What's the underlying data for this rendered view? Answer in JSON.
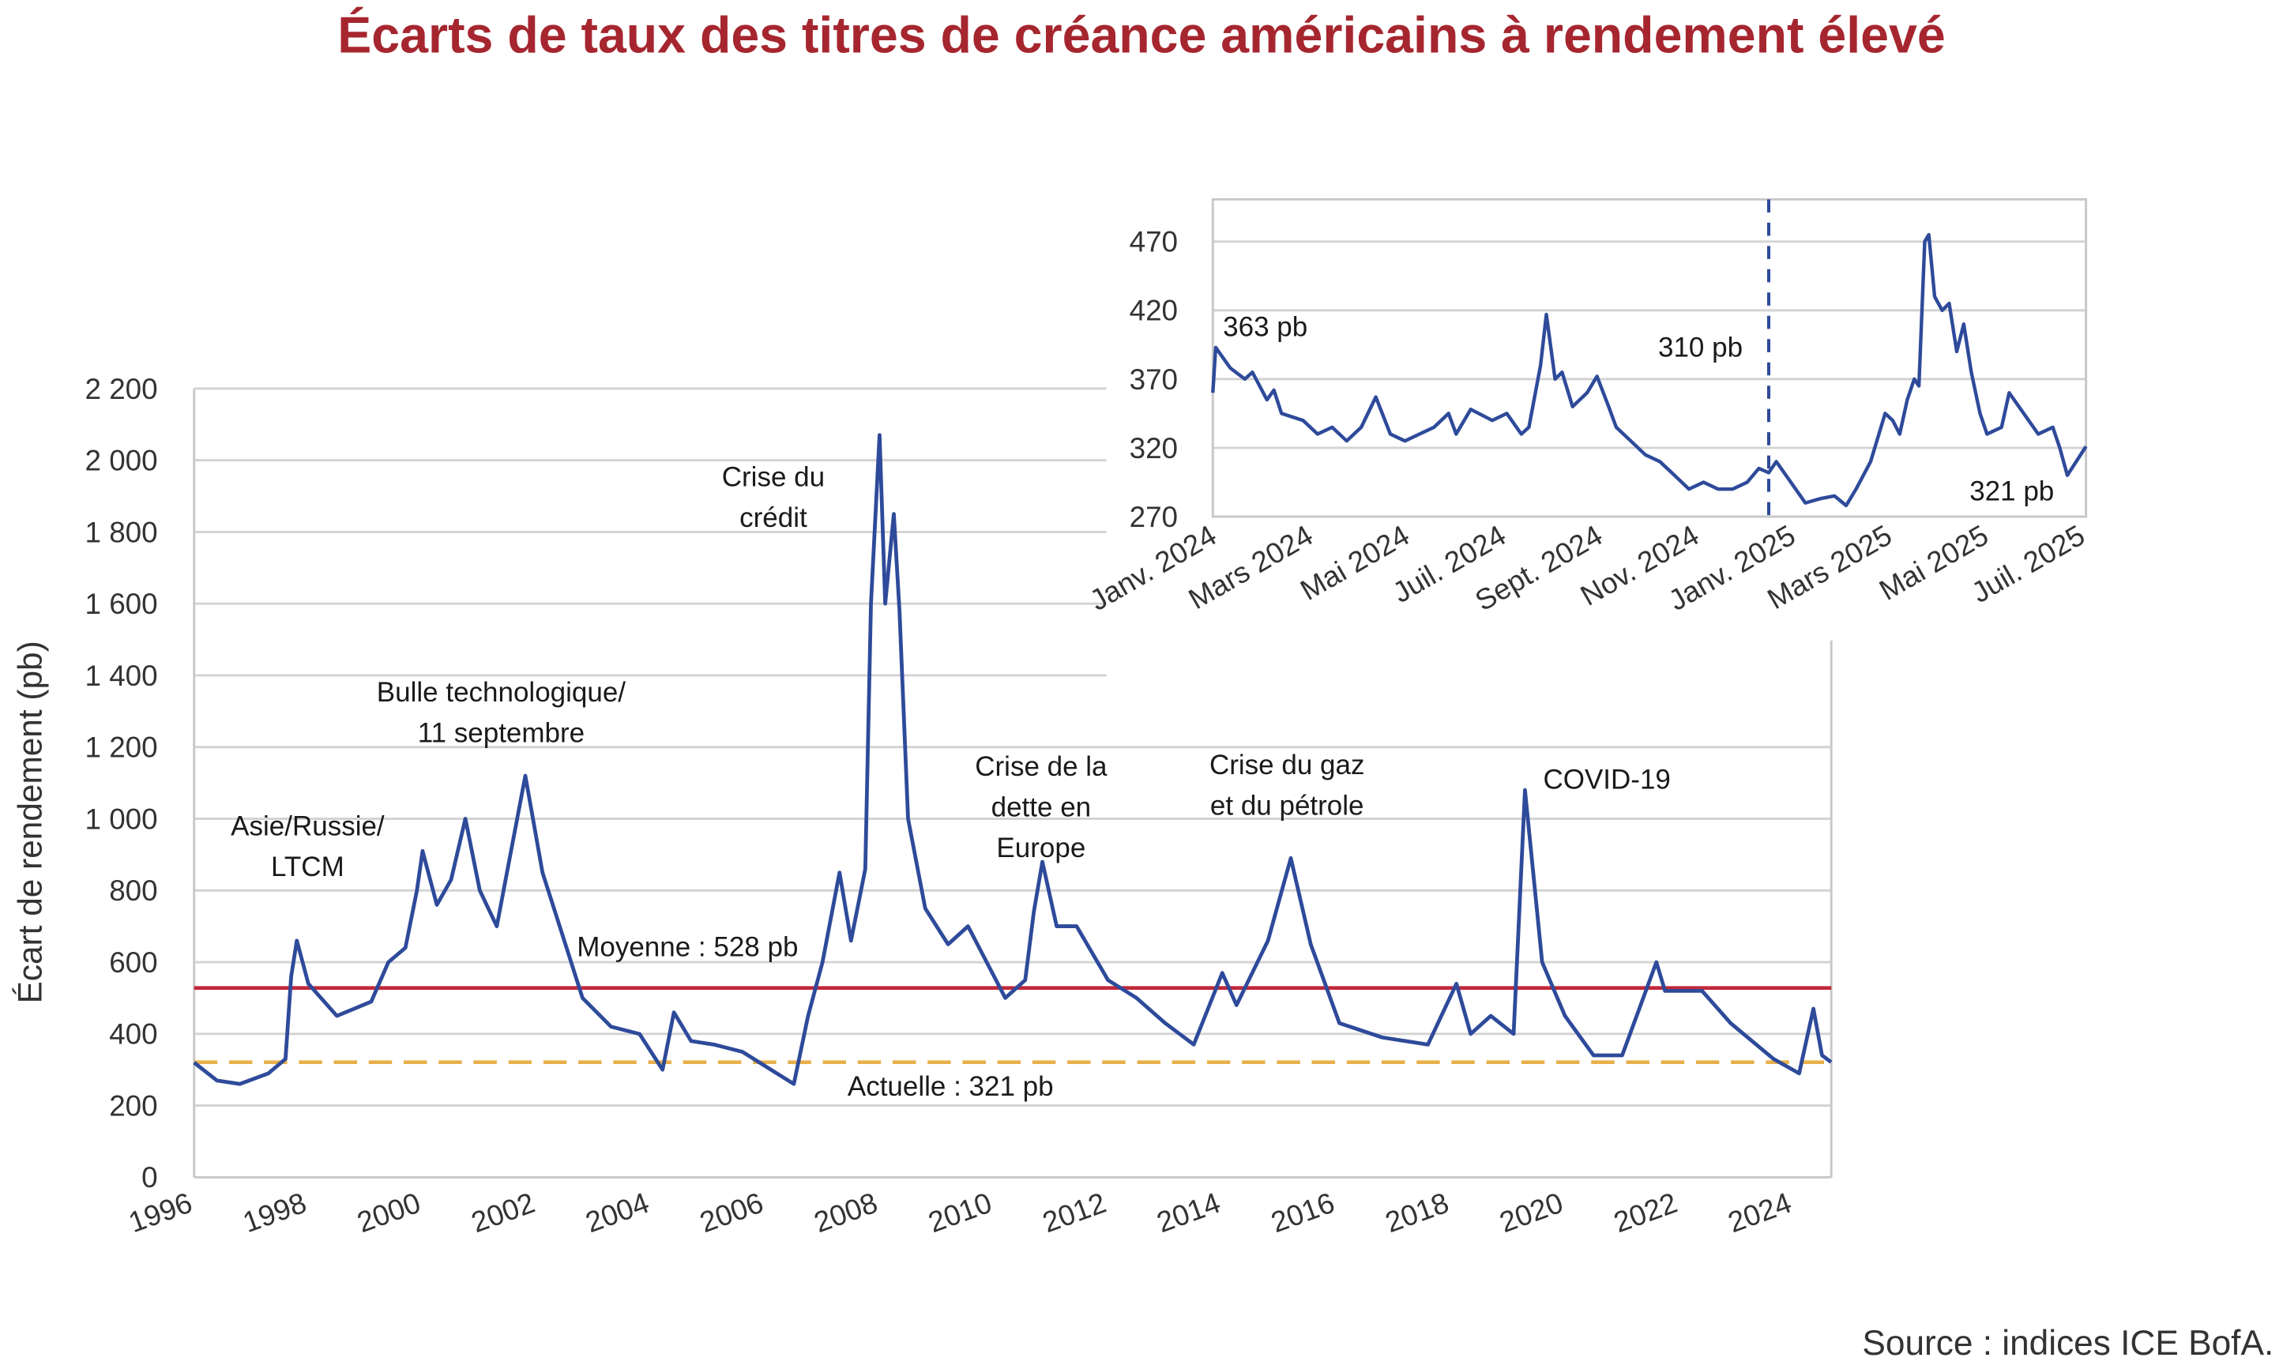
{
  "title": "Écarts de taux des titres de créance américains à rendement élevé",
  "source": "Source : indices ICE BofA.",
  "colors": {
    "title": "#A6262F",
    "series": "#2E4A9A",
    "mean": "#C0283A",
    "current": "#E8B04B",
    "grid": "#D3D3D3"
  },
  "chart_data": [
    {
      "type": "line",
      "ylabel": "Écart de rendement (pb)",
      "xlabel": "",
      "ylim": [
        0,
        2200
      ],
      "xlim": [
        1996,
        2024.66
      ],
      "grid": true,
      "x_ticks": [
        "1996",
        "1998",
        "2000",
        "2002",
        "2004",
        "2006",
        "2008",
        "2010",
        "2012",
        "2014",
        "2016",
        "2018",
        "2020",
        "2022",
        "2024"
      ],
      "y_ticks": [
        "0",
        "200",
        "400",
        "600",
        "800",
        "1 000",
        "1 200",
        "1 400",
        "1 600",
        "1 800",
        "2 000",
        "2 200"
      ],
      "y_tick_values": [
        0,
        200,
        400,
        600,
        800,
        1000,
        1200,
        1400,
        1600,
        1800,
        2000,
        2200
      ],
      "reference_lines": [
        {
          "label": "Moyenne : 528 pb",
          "value": 528,
          "style": "solid",
          "color": "#C0283A"
        },
        {
          "label": "Actuelle : 321 pb",
          "value": 321,
          "style": "dashed",
          "color": "#E8B04B"
        }
      ],
      "annotations": [
        {
          "lines": [
            "Asie/Russie/",
            "LTCM"
          ]
        },
        {
          "lines": [
            "Bulle technologique/",
            "11 septembre"
          ]
        },
        {
          "lines": [
            "Crise du",
            "crédit"
          ]
        },
        {
          "lines": [
            "Crise de la",
            "dette en",
            "Europe"
          ]
        },
        {
          "lines": [
            "Crise du gaz",
            "et du pétrole"
          ]
        },
        {
          "lines": [
            "COVID-19"
          ]
        }
      ],
      "series": [
        {
          "x": [
            1996.0,
            1996.4,
            1996.8,
            1997.3,
            1997.6,
            1997.7,
            1997.8,
            1998.0,
            1998.5,
            1999.1,
            1999.4,
            1999.7,
            1999.9,
            2000.0,
            2000.25,
            2000.5,
            2000.75,
            2001.0,
            2001.3,
            2001.5,
            2001.8,
            2002.1,
            2002.4,
            2002.8,
            2003.3,
            2003.8,
            2004.2,
            2004.4,
            2004.7,
            2005.1,
            2005.6,
            2006.1,
            2006.5,
            2006.75,
            2007.0,
            2007.3,
            2007.5,
            2007.75,
            2007.85,
            2008.0,
            2008.1,
            2008.25,
            2008.35,
            2008.5,
            2008.8,
            2009.2,
            2009.55,
            2010.2,
            2010.55,
            2010.7,
            2010.85,
            2011.1,
            2011.45,
            2012.0,
            2012.5,
            2013.0,
            2013.5,
            2014.0,
            2014.25,
            2014.8,
            2015.2,
            2015.55,
            2016.05,
            2016.8,
            2017.6,
            2018.1,
            2018.35,
            2018.7,
            2019.1,
            2019.3,
            2019.6,
            2020.0,
            2020.5,
            2021.0,
            2021.6,
            2021.75,
            2022.4,
            2022.9,
            2023.65,
            2024.1,
            2024.35,
            2024.5,
            2024.66
          ],
          "y": [
            320,
            270,
            260,
            290,
            330,
            560,
            660,
            540,
            450,
            490,
            600,
            640,
            800,
            910,
            760,
            830,
            1000,
            800,
            700,
            870,
            1120,
            850,
            700,
            500,
            420,
            400,
            300,
            460,
            380,
            370,
            350,
            300,
            260,
            450,
            600,
            850,
            660,
            860,
            1600,
            2070,
            1600,
            1850,
            1580,
            1000,
            750,
            650,
            700,
            500,
            550,
            740,
            880,
            700,
            700,
            550,
            500,
            430,
            370,
            570,
            480,
            660,
            890,
            650,
            430,
            390,
            370,
            540,
            400,
            450,
            400,
            1080,
            600,
            450,
            340,
            340,
            600,
            520,
            520,
            430,
            330,
            290,
            470,
            340,
            321
          ]
        }
      ]
    },
    {
      "type": "line",
      "ylim": [
        270,
        490
      ],
      "y_ticks": [
        "270",
        "320",
        "370",
        "420",
        "470"
      ],
      "y_tick_values": [
        270,
        320,
        370,
        420,
        470
      ],
      "x_ticks": [
        "Janv. 2024",
        "Mars 2024",
        "Mai 2024",
        "Juil. 2024",
        "Sept. 2024",
        "Nov. 2024",
        "Janv. 2025",
        "Mars 2025",
        "Mai 2025",
        "Juil. 2025"
      ],
      "grid": true,
      "marker_line": {
        "x": 2024.955,
        "style": "dashed"
      },
      "annotations": [
        {
          "text": "363 pb"
        },
        {
          "text": "310 pb"
        },
        {
          "text": "321 pb"
        }
      ],
      "series": [
        {
          "x": [
            2024.0,
            2024.005,
            2024.03,
            2024.055,
            2024.068,
            2024.093,
            2024.105,
            2024.118,
            2024.155,
            2024.18,
            2024.205,
            2024.23,
            2024.255,
            2024.28,
            2024.305,
            2024.33,
            2024.355,
            2024.38,
            2024.405,
            2024.418,
            2024.443,
            2024.48,
            2024.505,
            2024.53,
            2024.543,
            2024.563,
            2024.573,
            2024.588,
            2024.6,
            2024.618,
            2024.643,
            2024.66,
            2024.68,
            2024.693,
            2024.718,
            2024.743,
            2024.768,
            2024.793,
            2024.818,
            2024.843,
            2024.868,
            2024.893,
            2024.918,
            2024.938,
            2024.955,
            2024.968,
            2024.993,
            2025.018,
            2025.043,
            2025.068,
            2025.088,
            2025.105,
            2025.13,
            2025.155,
            2025.168,
            2025.18,
            2025.193,
            2025.205,
            2025.213,
            2025.223,
            2025.23,
            2025.24,
            2025.253,
            2025.265,
            2025.278,
            2025.29,
            2025.303,
            2025.318,
            2025.33,
            2025.355,
            2025.368,
            2025.393,
            2025.418,
            2025.443,
            2025.455,
            2025.468,
            2025.5
          ],
          "y": [
            360,
            393,
            378,
            370,
            375,
            355,
            362,
            345,
            340,
            330,
            335,
            325,
            335,
            357,
            330,
            325,
            330,
            335,
            345,
            330,
            348,
            340,
            345,
            330,
            335,
            380,
            417,
            370,
            375,
            350,
            360,
            372,
            350,
            335,
            325,
            315,
            310,
            300,
            290,
            295,
            290,
            290,
            295,
            305,
            302,
            310,
            295,
            280,
            283,
            285,
            278,
            290,
            310,
            345,
            340,
            330,
            355,
            370,
            365,
            470,
            475,
            430,
            420,
            425,
            390,
            410,
            375,
            345,
            330,
            335,
            360,
            345,
            330,
            335,
            320,
            300,
            321
          ]
        }
      ]
    }
  ]
}
